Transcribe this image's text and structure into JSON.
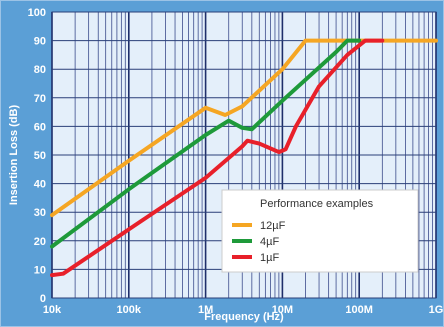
{
  "chart_data": {
    "type": "line",
    "xlabel": "Frequency (Hz)",
    "ylabel": "Insertion Loss (dB)",
    "xscale": "log",
    "xlim": [
      10000,
      1000000000
    ],
    "ylim": [
      0,
      100
    ],
    "x_ticks": [
      {
        "value": 10000,
        "label": "10k"
      },
      {
        "value": 100000,
        "label": "100k"
      },
      {
        "value": 1000000,
        "label": "1M"
      },
      {
        "value": 10000000,
        "label": "10M"
      },
      {
        "value": 100000000,
        "label": "100M"
      },
      {
        "value": 1000000000,
        "label": "1G"
      }
    ],
    "y_ticks": [
      0,
      10,
      20,
      30,
      40,
      50,
      60,
      70,
      80,
      90,
      100
    ],
    "grid": true,
    "legend": {
      "title": "Performance examples",
      "position": "bottom-right"
    },
    "series": [
      {
        "name": "12µF",
        "color": "#f5a623",
        "points": [
          [
            10000,
            29
          ],
          [
            100000,
            48
          ],
          [
            1000000,
            66.5
          ],
          [
            1800000,
            64
          ],
          [
            3000000,
            67
          ],
          [
            10000000,
            80
          ],
          [
            20000000,
            90
          ],
          [
            1000000000,
            90
          ]
        ]
      },
      {
        "name": "4µF",
        "color": "#1e9a3a",
        "points": [
          [
            10000,
            18
          ],
          [
            100000,
            38
          ],
          [
            1000000,
            57
          ],
          [
            2000000,
            62
          ],
          [
            3000000,
            59.5
          ],
          [
            4000000,
            59
          ],
          [
            10000000,
            69
          ],
          [
            50000000,
            86
          ],
          [
            70000000,
            90
          ],
          [
            100000000,
            90
          ]
        ]
      },
      {
        "name": "1µF",
        "color": "#e8202a",
        "points": [
          [
            10000,
            8
          ],
          [
            14000,
            8.5
          ],
          [
            100000,
            24
          ],
          [
            1000000,
            42
          ],
          [
            3000000,
            53
          ],
          [
            3500000,
            55
          ],
          [
            5000000,
            54
          ],
          [
            9000000,
            51
          ],
          [
            11000000,
            52
          ],
          [
            15000000,
            60
          ],
          [
            30000000,
            74
          ],
          [
            70000000,
            85
          ],
          [
            120000000,
            90
          ],
          [
            200000000,
            90
          ]
        ]
      }
    ]
  }
}
